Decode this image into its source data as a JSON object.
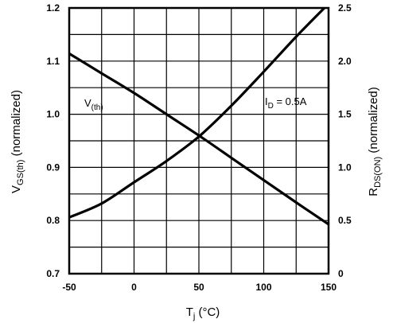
{
  "chart_data": {
    "type": "line",
    "grid": true,
    "x": [
      -50,
      -25,
      0,
      25,
      50,
      75,
      100,
      125,
      150
    ],
    "xlim": [
      -50,
      150
    ],
    "xticks": [
      "-50",
      "0",
      "50",
      "100",
      "150"
    ],
    "xlabel": {
      "main": "T",
      "sub": "j",
      "rest": " (°C)"
    },
    "ylim_left": [
      0.7,
      1.2
    ],
    "yticks_left": [
      "0.7",
      "0.8",
      "0.9",
      "1.0",
      "1.1",
      "1.2"
    ],
    "ylabel_left": {
      "main": "V",
      "sub": "GS(th)",
      "rest": " (normalized)"
    },
    "ylim_right": [
      0,
      2.5
    ],
    "yticks_right": [
      "0",
      "0.5",
      "1.0",
      "1.5",
      "2.0",
      "2.5"
    ],
    "ylabel_right": {
      "main": "R",
      "sub": "DS(ON)",
      "rest": " (normalized)"
    },
    "series": [
      {
        "label_main": "V",
        "label_sub": "(th)",
        "axis": "left",
        "values": [
          1.114,
          1.077,
          1.04,
          1.0,
          0.96,
          0.918,
          0.876,
          0.834,
          0.793
        ]
      },
      {
        "label_main": "I",
        "label_sub": "D",
        "label_rest": " = 0.5A",
        "axis": "right",
        "values": [
          0.53,
          0.66,
          0.86,
          1.06,
          1.29,
          1.58,
          1.9,
          2.23,
          2.54
        ]
      }
    ]
  }
}
